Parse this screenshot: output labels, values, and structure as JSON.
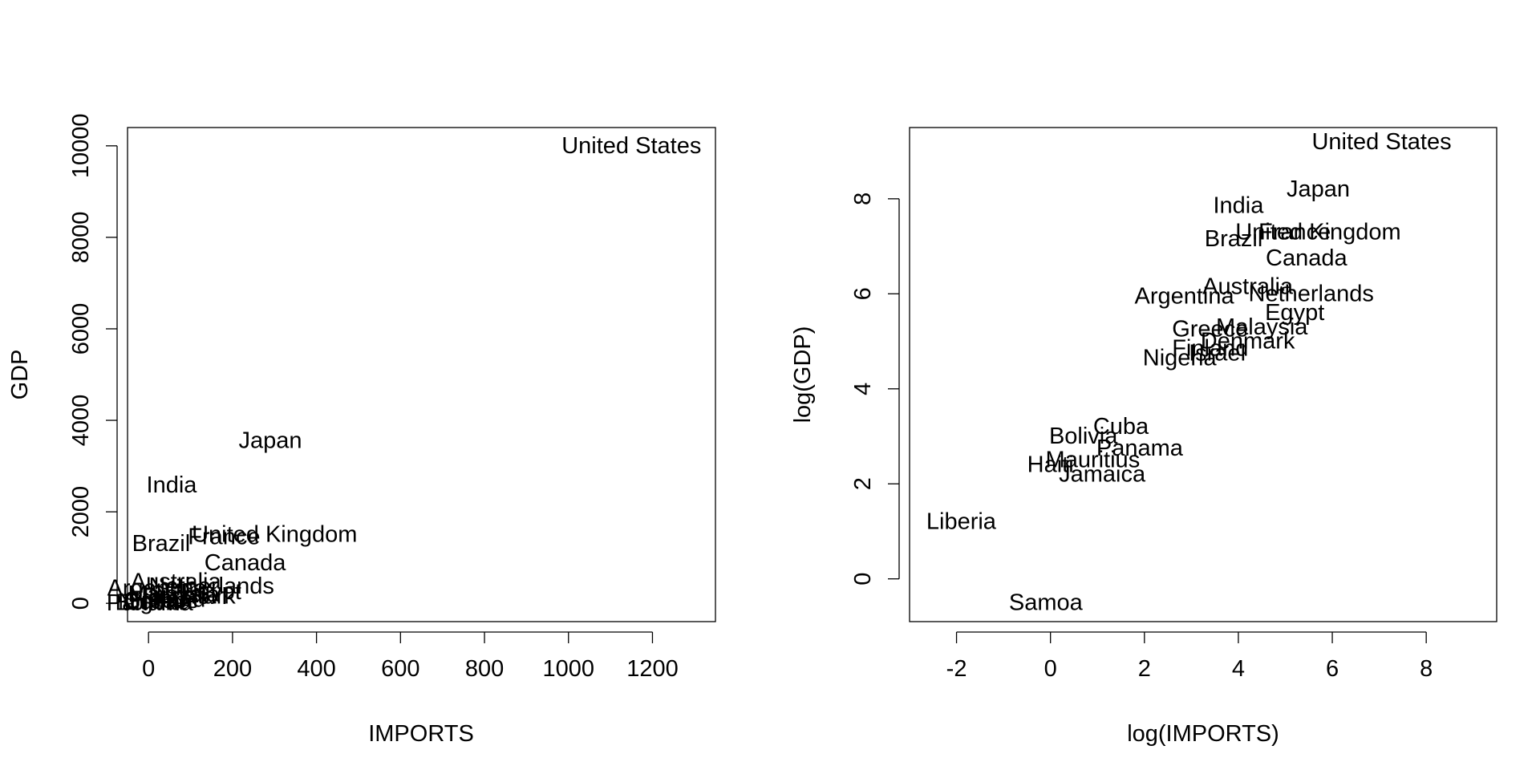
{
  "chart_data": [
    {
      "type": "scatter",
      "marker": "text-labels",
      "title": "",
      "xlabel": "IMPORTS",
      "ylabel": "GDP",
      "xlim": [
        -50,
        1350
      ],
      "ylim": [
        -400,
        10400
      ],
      "xticks": [
        0,
        200,
        400,
        600,
        800,
        1000,
        1200
      ],
      "yticks": [
        0,
        2000,
        4000,
        6000,
        8000,
        10000
      ],
      "grid": false,
      "legend": "none",
      "points": [
        {
          "label": "United States",
          "x": 1150,
          "y": 10000
        },
        {
          "label": "Japan",
          "x": 290,
          "y": 3550
        },
        {
          "label": "India",
          "x": 55,
          "y": 2580
        },
        {
          "label": "Brazil",
          "x": 30,
          "y": 1300
        },
        {
          "label": "United Kingdom",
          "x": 300,
          "y": 1500
        },
        {
          "label": "France",
          "x": 180,
          "y": 1450
        },
        {
          "label": "Canada",
          "x": 230,
          "y": 880
        },
        {
          "label": "Australia",
          "x": 65,
          "y": 470
        },
        {
          "label": "Netherlands",
          "x": 150,
          "y": 370
        },
        {
          "label": "Egypt",
          "x": 150,
          "y": 250
        },
        {
          "label": "Argentina",
          "x": 20,
          "y": 330
        },
        {
          "label": "Malaysia",
          "x": 60,
          "y": 200
        },
        {
          "label": "Denmark",
          "x": 95,
          "y": 150
        },
        {
          "label": "Israel",
          "x": 50,
          "y": 100
        },
        {
          "label": "Finland",
          "x": 45,
          "y": 80
        },
        {
          "label": "Greece",
          "x": 30,
          "y": 60
        },
        {
          "label": "Nigeria",
          "x": 15,
          "y": 30
        },
        {
          "label": "Cuba",
          "x": 5,
          "y": 20
        },
        {
          "label": "Bolivia",
          "x": 2,
          "y": 10
        },
        {
          "label": "Panama",
          "x": 3,
          "y": 5
        }
      ]
    },
    {
      "type": "scatter",
      "marker": "text-labels",
      "title": "",
      "xlabel": "log(IMPORTS)",
      "ylabel": "log(GDP)",
      "xlim": [
        -3.0,
        9.5
      ],
      "ylim": [
        -0.9,
        9.5
      ],
      "xticks": [
        -2,
        0,
        2,
        4,
        6,
        8
      ],
      "yticks": [
        0,
        2,
        4,
        6,
        8
      ],
      "grid": false,
      "legend": "none",
      "points": [
        {
          "label": "United States",
          "x": 7.05,
          "y": 9.2
        },
        {
          "label": "Japan",
          "x": 5.7,
          "y": 8.2
        },
        {
          "label": "India",
          "x": 4.0,
          "y": 7.85
        },
        {
          "label": "Brazil",
          "x": 3.9,
          "y": 7.15
        },
        {
          "label": "United Kingdom",
          "x": 5.7,
          "y": 7.3
        },
        {
          "label": "France",
          "x": 5.2,
          "y": 7.3
        },
        {
          "label": "Canada",
          "x": 5.45,
          "y": 6.75
        },
        {
          "label": "Australia",
          "x": 4.2,
          "y": 6.15
        },
        {
          "label": "Netherlands",
          "x": 5.55,
          "y": 6.0
        },
        {
          "label": "Argentina",
          "x": 2.85,
          "y": 5.95
        },
        {
          "label": "Egypt",
          "x": 5.2,
          "y": 5.6
        },
        {
          "label": "Malaysia",
          "x": 4.5,
          "y": 5.3
        },
        {
          "label": "Greece",
          "x": 3.4,
          "y": 5.25
        },
        {
          "label": "Denmark",
          "x": 4.2,
          "y": 5.0
        },
        {
          "label": "Finland",
          "x": 3.4,
          "y": 4.85
        },
        {
          "label": "Israel",
          "x": 3.55,
          "y": 4.75
        },
        {
          "label": "Nigeria",
          "x": 2.75,
          "y": 4.65
        },
        {
          "label": "Cuba",
          "x": 1.5,
          "y": 3.2
        },
        {
          "label": "Bolivia",
          "x": 0.7,
          "y": 3.0
        },
        {
          "label": "Panama",
          "x": 1.9,
          "y": 2.75
        },
        {
          "label": "Mauritius",
          "x": 0.9,
          "y": 2.5
        },
        {
          "label": "Haiti",
          "x": 0.0,
          "y": 2.4
        },
        {
          "label": "Jamaica",
          "x": 1.1,
          "y": 2.2
        },
        {
          "label": "Liberia",
          "x": -1.9,
          "y": 1.2
        },
        {
          "label": "Samoa",
          "x": -0.1,
          "y": -0.5
        }
      ]
    }
  ]
}
